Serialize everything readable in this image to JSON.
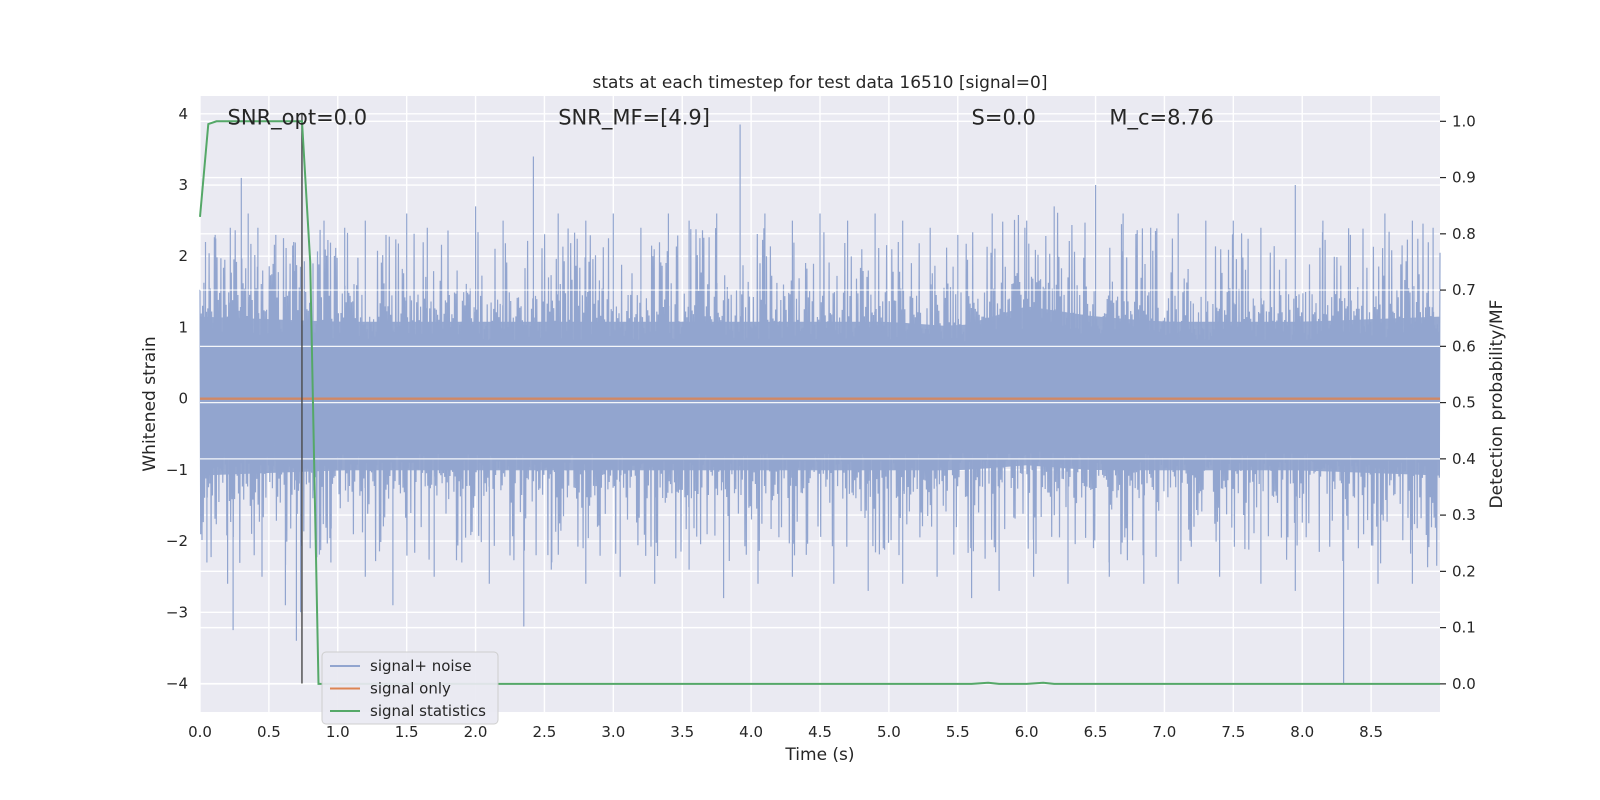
{
  "chart_data": {
    "type": "line",
    "title": "stats at each timestep for test data 16510 [signal=0]",
    "xlabel": "Time (s)",
    "ylabel": "Whitened strain",
    "y2label": "Detection probability/MF",
    "xlim": [
      0,
      9.0
    ],
    "ylim": [
      -4.4,
      4.25
    ],
    "y2lim": [
      -0.05,
      1.045
    ],
    "x_ticks": [
      0.0,
      0.5,
      1.0,
      1.5,
      2.0,
      2.5,
      3.0,
      3.5,
      4.0,
      4.5,
      5.0,
      5.5,
      6.0,
      6.5,
      7.0,
      7.5,
      8.0,
      8.5
    ],
    "x_tick_labels": [
      "0.0",
      "0.5",
      "1.0",
      "1.5",
      "2.0",
      "2.5",
      "3.0",
      "3.5",
      "4.0",
      "4.5",
      "5.0",
      "5.5",
      "6.0",
      "6.5",
      "7.0",
      "7.5",
      "8.0",
      "8.5"
    ],
    "y_ticks": [
      4,
      3,
      2,
      1,
      0,
      -1,
      -2,
      -3,
      -4
    ],
    "y_tick_labels": [
      "4",
      "3",
      "2",
      "1",
      "0",
      "−1",
      "−2",
      "−3",
      "−4"
    ],
    "y2_ticks": [
      1.0,
      0.9,
      0.8,
      0.7,
      0.6,
      0.5,
      0.4,
      0.3,
      0.2,
      0.1,
      0.0
    ],
    "y2_tick_labels": [
      "1.0",
      "0.9",
      "0.8",
      "0.7",
      "0.6",
      "0.5",
      "0.4",
      "0.3",
      "0.2",
      "0.1",
      "0.0"
    ],
    "grid": true,
    "legend_placement": "lower-left",
    "annotations": [
      {
        "text": "SNR_opt=0.0",
        "x": 0.2,
        "y": 3.95
      },
      {
        "text": "SNR_MF=[4.9]",
        "x": 2.6,
        "y": 3.95
      },
      {
        "text": "S=0.0",
        "x": 5.6,
        "y": 3.95
      },
      {
        "text": "M_c=8.76",
        "x": 6.6,
        "y": 3.95
      }
    ],
    "vline": {
      "x": 0.74,
      "y_range": [
        -4.0,
        4.0
      ]
    },
    "series": [
      {
        "name": "signal+ noise",
        "color": "#92a5cf",
        "axis": "left",
        "style": "dense-noise",
        "band_upper": [
          [
            0.0,
            1.6
          ],
          [
            1.0,
            1.5
          ],
          [
            2.0,
            1.5
          ],
          [
            3.0,
            1.5
          ],
          [
            4.0,
            1.5
          ],
          [
            5.0,
            1.5
          ],
          [
            5.5,
            1.4
          ],
          [
            6.0,
            1.8
          ],
          [
            6.5,
            1.6
          ],
          [
            7.0,
            1.5
          ],
          [
            8.0,
            1.5
          ],
          [
            9.0,
            1.6
          ]
        ],
        "band_lower": [
          [
            0.0,
            -1.5
          ],
          [
            1.0,
            -1.4
          ],
          [
            2.0,
            -1.4
          ],
          [
            3.0,
            -1.4
          ],
          [
            4.0,
            -1.4
          ],
          [
            5.0,
            -1.4
          ],
          [
            5.5,
            -1.4
          ],
          [
            6.0,
            -1.3
          ],
          [
            6.5,
            -1.4
          ],
          [
            7.0,
            -1.4
          ],
          [
            8.0,
            -1.4
          ],
          [
            9.0,
            -1.5
          ]
        ],
        "peaks": [
          [
            0.04,
            2.2
          ],
          [
            0.11,
            2.3
          ],
          [
            0.22,
            2.4
          ],
          [
            0.3,
            3.1
          ],
          [
            0.35,
            2.6
          ],
          [
            0.42,
            2.4
          ],
          [
            0.55,
            2.3
          ],
          [
            0.68,
            2.2
          ],
          [
            0.74,
            3.8
          ],
          [
            0.82,
            1.9
          ],
          [
            0.9,
            2.5
          ],
          [
            1.05,
            2.4
          ],
          [
            1.2,
            2.5
          ],
          [
            1.35,
            2.3
          ],
          [
            1.5,
            2.6
          ],
          [
            1.65,
            2.4
          ],
          [
            1.8,
            2.3
          ],
          [
            2.0,
            2.7
          ],
          [
            2.2,
            2.5
          ],
          [
            2.42,
            3.4
          ],
          [
            2.6,
            2.6
          ],
          [
            2.8,
            2.5
          ],
          [
            3.0,
            2.6
          ],
          [
            3.2,
            2.4
          ],
          [
            3.4,
            2.6
          ],
          [
            3.55,
            2.5
          ],
          [
            3.75,
            2.6
          ],
          [
            3.92,
            3.85
          ],
          [
            4.1,
            2.6
          ],
          [
            4.3,
            2.5
          ],
          [
            4.5,
            2.6
          ],
          [
            4.7,
            2.5
          ],
          [
            4.9,
            2.6
          ],
          [
            5.1,
            2.5
          ],
          [
            5.3,
            2.4
          ],
          [
            5.5,
            2.3
          ],
          [
            5.75,
            2.6
          ],
          [
            6.0,
            2.5
          ],
          [
            6.2,
            2.7
          ],
          [
            6.5,
            3.0
          ],
          [
            6.7,
            2.6
          ],
          [
            6.9,
            2.4
          ],
          [
            7.1,
            2.6
          ],
          [
            7.3,
            2.5
          ],
          [
            7.5,
            2.5
          ],
          [
            7.7,
            2.4
          ],
          [
            7.95,
            3.0
          ],
          [
            8.15,
            2.5
          ],
          [
            8.35,
            2.3
          ],
          [
            8.6,
            2.6
          ],
          [
            8.8,
            2.5
          ],
          [
            8.95,
            2.4
          ]
        ],
        "troughs": [
          [
            0.05,
            -2.3
          ],
          [
            0.2,
            -2.6
          ],
          [
            0.24,
            -3.25
          ],
          [
            0.45,
            -2.5
          ],
          [
            0.62,
            -2.9
          ],
          [
            0.7,
            -3.4
          ],
          [
            0.73,
            -3.0
          ],
          [
            0.8,
            -2.1
          ],
          [
            0.95,
            -2.3
          ],
          [
            1.2,
            -2.5
          ],
          [
            1.4,
            -2.9
          ],
          [
            1.7,
            -2.5
          ],
          [
            1.9,
            -2.3
          ],
          [
            2.1,
            -2.6
          ],
          [
            2.35,
            -3.2
          ],
          [
            2.55,
            -2.4
          ],
          [
            2.8,
            -2.6
          ],
          [
            3.05,
            -2.5
          ],
          [
            3.3,
            -2.6
          ],
          [
            3.55,
            -2.4
          ],
          [
            3.8,
            -2.8
          ],
          [
            4.05,
            -2.6
          ],
          [
            4.3,
            -2.5
          ],
          [
            4.6,
            -2.6
          ],
          [
            4.85,
            -2.7
          ],
          [
            5.1,
            -2.6
          ],
          [
            5.35,
            -2.5
          ],
          [
            5.6,
            -2.8
          ],
          [
            5.8,
            -2.7
          ],
          [
            6.05,
            -2.5
          ],
          [
            6.3,
            -2.6
          ],
          [
            6.6,
            -2.5
          ],
          [
            6.85,
            -2.6
          ],
          [
            7.1,
            -2.6
          ],
          [
            7.4,
            -2.5
          ],
          [
            7.7,
            -2.6
          ],
          [
            7.95,
            -2.7
          ],
          [
            8.3,
            -4.0
          ],
          [
            8.55,
            -2.6
          ],
          [
            8.8,
            -2.6
          ]
        ]
      },
      {
        "name": "signal only",
        "color": "#dd8452",
        "axis": "left",
        "x": [
          0.0,
          9.0
        ],
        "y": [
          0.0,
          0.0
        ]
      },
      {
        "name": "signal statistics",
        "color": "#55a868",
        "axis": "right",
        "x": [
          0.0,
          0.06,
          0.12,
          0.7,
          0.74,
          0.8,
          0.86,
          0.9,
          5.6,
          5.72,
          5.8,
          6.0,
          6.12,
          6.2,
          9.0
        ],
        "y": [
          0.83,
          0.995,
          1.0,
          1.0,
          1.0,
          0.75,
          0.0,
          0.0,
          0.0,
          0.002,
          0.0,
          0.0,
          0.002,
          0.0,
          0.0
        ]
      }
    ]
  }
}
